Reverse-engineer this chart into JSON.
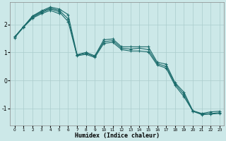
{
  "xlabel": "Humidex (Indice chaleur)",
  "bg_color": "#cce8e8",
  "grid_color": "#aacccc",
  "line_color": "#1a6b6b",
  "xlim": [
    -0.5,
    23.5
  ],
  "ylim": [
    -1.6,
    2.8
  ],
  "xticks": [
    0,
    1,
    2,
    3,
    4,
    5,
    6,
    7,
    8,
    9,
    10,
    11,
    12,
    13,
    14,
    15,
    16,
    17,
    18,
    19,
    20,
    21,
    22,
    23
  ],
  "yticks": [
    -1,
    0,
    1,
    2
  ],
  "series": [
    {
      "x": [
        0,
        1,
        2,
        3,
        4,
        5,
        6,
        7,
        8,
        9,
        10,
        11,
        12,
        13,
        14,
        15,
        16,
        17,
        18,
        19,
        20,
        21,
        22,
        23
      ],
      "y": [
        1.55,
        1.92,
        2.3,
        2.48,
        2.62,
        2.55,
        2.35,
        0.92,
        1.0,
        0.88,
        1.45,
        1.48,
        1.2,
        1.2,
        1.2,
        1.2,
        0.65,
        0.58,
        -0.08,
        -0.42,
        -1.08,
        -1.18,
        -1.12,
        -1.1
      ]
    },
    {
      "x": [
        0,
        1,
        2,
        3,
        4,
        5,
        6,
        7,
        8,
        9,
        10,
        11,
        12,
        13,
        14,
        15,
        16,
        17,
        18,
        19,
        20,
        21,
        22,
        23
      ],
      "y": [
        1.55,
        1.92,
        2.28,
        2.45,
        2.58,
        2.5,
        2.2,
        0.9,
        0.97,
        0.85,
        1.38,
        1.42,
        1.15,
        1.12,
        1.15,
        1.1,
        0.6,
        0.5,
        -0.12,
        -0.5,
        -1.1,
        -1.2,
        -1.18,
        -1.15
      ]
    },
    {
      "x": [
        0,
        1,
        2,
        3,
        4,
        5,
        6,
        7,
        8,
        9,
        10,
        11,
        12,
        13,
        14,
        15,
        16,
        17,
        18,
        19,
        20,
        21,
        22,
        23
      ],
      "y": [
        1.55,
        1.92,
        2.25,
        2.42,
        2.55,
        2.45,
        2.1,
        0.88,
        0.93,
        0.82,
        1.32,
        1.36,
        1.1,
        1.05,
        1.05,
        1.02,
        0.55,
        0.44,
        -0.18,
        -0.58,
        -1.1,
        -1.22,
        -1.2,
        -1.18
      ]
    },
    {
      "x": [
        0,
        1,
        2,
        3,
        4,
        5
      ],
      "y": [
        1.52,
        1.9,
        2.22,
        2.38,
        2.5,
        2.38
      ]
    }
  ]
}
